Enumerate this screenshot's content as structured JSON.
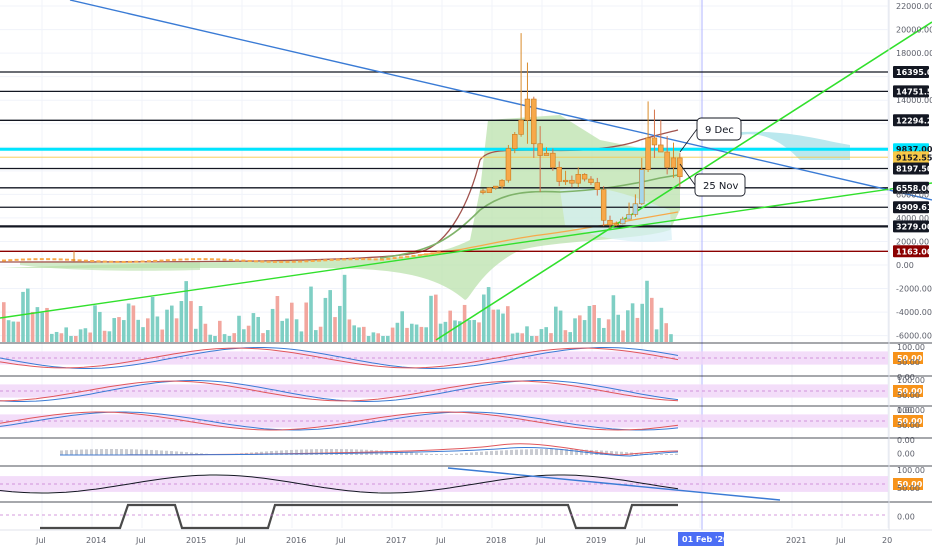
{
  "chart_data": {
    "type": "candlestick",
    "interval": "monthly",
    "price_axis": {
      "ylim": [
        -7000,
        22000
      ],
      "ticks": [
        22000,
        20000,
        18000,
        16000,
        14000,
        12000,
        10000,
        8000,
        6000,
        4000,
        2000,
        0,
        -2000,
        -4000,
        -6000
      ],
      "tick_labels": [
        "22000.00",
        "20000.00",
        "18000.00",
        "",
        "14000.00",
        "",
        "",
        "",
        "6000.00",
        "4000.00",
        "2000.00",
        "0.00",
        "-2000.00",
        "-4000.00",
        "-6000.00"
      ]
    },
    "horizontal_levels": [
      {
        "label": "16395.00",
        "value": 16395,
        "color": "#131722",
        "text_color": "#ffffff"
      },
      {
        "label": "14751.50",
        "value": 14751.5,
        "color": "#131722",
        "text_color": "#ffffff"
      },
      {
        "label": "12294.25",
        "value": 12294.25,
        "color": "#131722",
        "text_color": "#ffffff"
      },
      {
        "label": "9837.00",
        "value": 9837,
        "color": "#00e5ff",
        "text_color": "#131722"
      },
      {
        "label": "9152.55",
        "value": 9152.55,
        "color": "#f7c948",
        "text_color": "#131722"
      },
      {
        "label": "8197.50",
        "value": 8197.5,
        "color": "#131722",
        "text_color": "#ffffff"
      },
      {
        "label": "6558.00",
        "value": 6558,
        "color": "#131722",
        "text_color": "#ffffff"
      },
      {
        "label": "4909.61",
        "value": 4909.61,
        "color": "#131722",
        "text_color": "#ffffff"
      },
      {
        "label": "3279.00",
        "value": 3279,
        "color": "#131722",
        "text_color": "#ffffff"
      },
      {
        "label": "1163.00",
        "value": 1163,
        "color": "#8b0000",
        "text_color": "#ffffff"
      }
    ],
    "annotations": [
      {
        "text": "9 Dec"
      },
      {
        "text": "25 Nov"
      }
    ],
    "time_axis": {
      "labels": [
        "Jul",
        "2014",
        "Jul",
        "2015",
        "Jul",
        "2016",
        "Jul",
        "2017",
        "Jul",
        "2018",
        "Jul",
        "2019",
        "Jul",
        "01 Feb '20",
        "2021",
        "Jul",
        "20"
      ],
      "highlight": "01 Feb '20"
    },
    "candles": [
      {
        "o": 6300,
        "h": 6480,
        "l": 6000,
        "c": 6150
      },
      {
        "o": 6150,
        "h": 6600,
        "l": 6300,
        "c": 6560
      },
      {
        "o": 6560,
        "h": 6700,
        "l": 6400,
        "c": 6700
      },
      {
        "o": 6700,
        "h": 7300,
        "l": 6500,
        "c": 7200
      },
      {
        "o": 7200,
        "h": 10200,
        "l": 7000,
        "c": 9900
      },
      {
        "o": 9900,
        "h": 11300,
        "l": 9500,
        "c": 11100
      },
      {
        "o": 11100,
        "h": 19700,
        "l": 10900,
        "c": 12300
      },
      {
        "o": 12300,
        "h": 17200,
        "l": 10300,
        "c": 14100
      },
      {
        "o": 14100,
        "h": 14300,
        "l": 9100,
        "c": 10300
      },
      {
        "o": 10300,
        "h": 11800,
        "l": 6200,
        "c": 9300
      },
      {
        "o": 9300,
        "h": 10000,
        "l": 9400,
        "c": 9500
      },
      {
        "o": 9500,
        "h": 9900,
        "l": 8000,
        "c": 8300
      },
      {
        "o": 8300,
        "h": 8800,
        "l": 6700,
        "c": 7100
      },
      {
        "o": 7100,
        "h": 8000,
        "l": 6800,
        "c": 7200
      },
      {
        "o": 7200,
        "h": 7600,
        "l": 6600,
        "c": 6950
      },
      {
        "o": 6950,
        "h": 8300,
        "l": 6600,
        "c": 7700
      },
      {
        "o": 7700,
        "h": 7800,
        "l": 7100,
        "c": 7300
      },
      {
        "o": 7300,
        "h": 7550,
        "l": 6800,
        "c": 7000
      },
      {
        "o": 7000,
        "h": 7400,
        "l": 5900,
        "c": 6400
      },
      {
        "o": 6400,
        "h": 6700,
        "l": 3300,
        "c": 3800
      },
      {
        "o": 3800,
        "h": 4200,
        "l": 3100,
        "c": 3400
      },
      {
        "o": 3400,
        "h": 3700,
        "l": 3300,
        "c": 3500
      },
      {
        "o": 3500,
        "h": 4100,
        "l": 3450,
        "c": 3900
      },
      {
        "o": 3900,
        "h": 5300,
        "l": 3850,
        "c": 4300
      },
      {
        "o": 4300,
        "h": 6000,
        "l": 4100,
        "c": 5200
      },
      {
        "o": 5200,
        "h": 9100,
        "l": 5100,
        "c": 8100
      },
      {
        "o": 8100,
        "h": 13900,
        "l": 7900,
        "c": 10800
      },
      {
        "o": 10800,
        "h": 13200,
        "l": 9100,
        "c": 10200
      },
      {
        "o": 10200,
        "h": 12300,
        "l": 9600,
        "c": 9600
      },
      {
        "o": 9600,
        "h": 10950,
        "l": 7700,
        "c": 8300
      },
      {
        "o": 8300,
        "h": 10400,
        "l": 7400,
        "c": 9100
      },
      {
        "o": 9100,
        "h": 9500,
        "l": 6600,
        "c": 7500
      }
    ],
    "volume": [
      2600,
      1000,
      1500,
      2200,
      2700,
      2600,
      2800,
      3100,
      1400,
      1900,
      900,
      700,
      400,
      1000,
      450,
      300,
      600,
      1200,
      900,
      1800,
      1600,
      1200,
      800,
      1100,
      1600,
      2500,
      2300,
      1700,
      1800,
      1500,
      1200,
      2300
    ]
  },
  "indicator_panes": [
    {
      "name": "stoch-rsi-1",
      "ylabels": [
        "100.00",
        "50.00",
        "0.00"
      ],
      "tag": "50.00"
    },
    {
      "name": "stoch-rsi-2",
      "ylabels": [
        "100.00",
        "50.00",
        "0.00"
      ],
      "tag": "50.00"
    },
    {
      "name": "stoch-rsi-3",
      "ylabels": [
        "100.00",
        "50.00",
        "0.00"
      ],
      "tag": "50.00"
    },
    {
      "name": "macd",
      "ylabels": [
        "0.00"
      ],
      "tag": ""
    },
    {
      "name": "rsi",
      "ylabels": [
        "100.00",
        "50.00"
      ],
      "tag": "50.00"
    },
    {
      "name": "binary-signal",
      "ylabels": [
        "0.00"
      ],
      "tag": ""
    }
  ],
  "colors": {
    "up": "#7fcfc4",
    "down": "#f2a69e",
    "candle_body": "#f7a94a",
    "candle_body_up": "#a6d6ea",
    "trend_blue": "#3a7bd5",
    "trend_green": "#31e02c",
    "cloud": "#b7dfa6",
    "cloud_blue": "#b3e5ec",
    "rsi_band": "#f0d4f7",
    "tag_orange": "#f7931a"
  }
}
